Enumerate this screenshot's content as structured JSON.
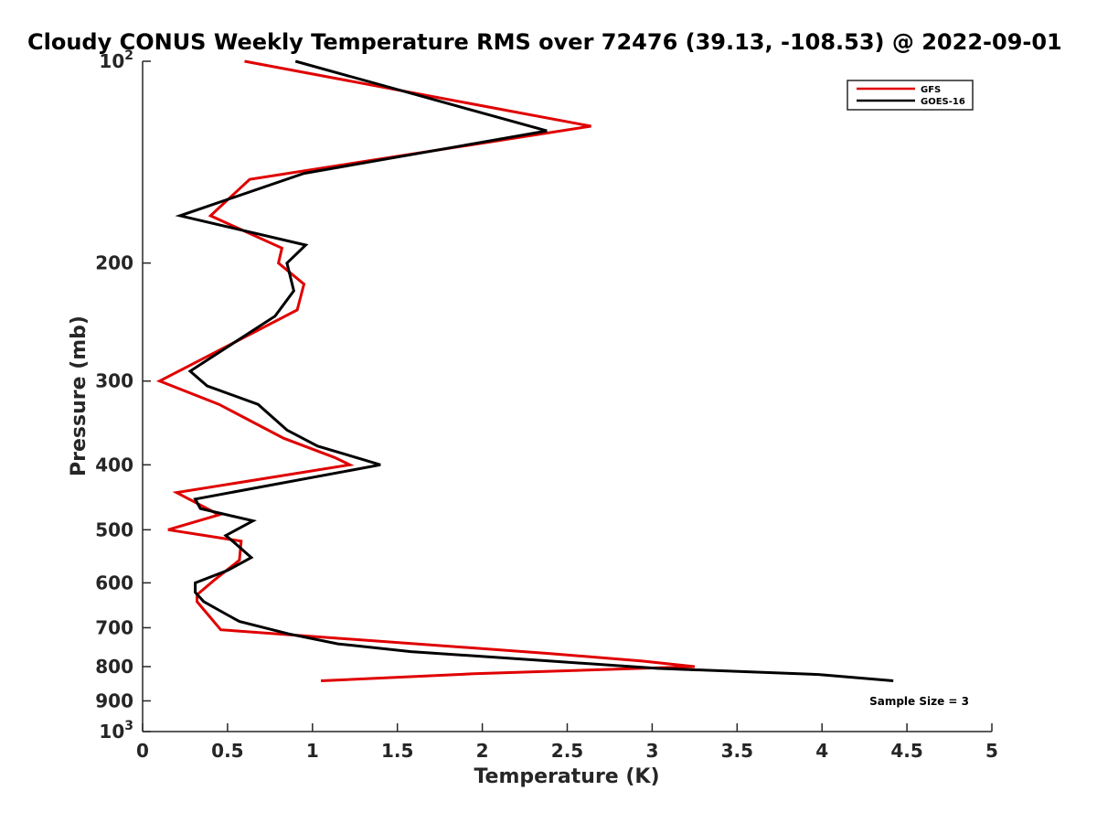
{
  "chart_data": {
    "type": "line",
    "title": "Cloudy CONUS Weekly Temperature RMS over 72476 (39.13, -108.53) @ 2022-09-01",
    "xlabel": "Temperature (K)",
    "ylabel": "Pressure (mb)",
    "xlim": [
      0,
      5
    ],
    "ylim": [
      100,
      1000
    ],
    "yscale": "log",
    "yreversed": true,
    "x_ticks": [
      "0",
      "0.5",
      "1",
      "1.5",
      "2",
      "2.5",
      "3",
      "3.5",
      "4",
      "4.5",
      "5"
    ],
    "y_ticks": [
      {
        "value": 100,
        "base": "10",
        "exp": "2"
      },
      {
        "value": 200,
        "label": "200"
      },
      {
        "value": 300,
        "label": "300"
      },
      {
        "value": 400,
        "label": "400"
      },
      {
        "value": 500,
        "label": "500"
      },
      {
        "value": 600,
        "label": "600"
      },
      {
        "value": 700,
        "label": "700"
      },
      {
        "value": 800,
        "label": "800"
      },
      {
        "value": 900,
        "label": "900"
      },
      {
        "value": 1000,
        "base": "10",
        "exp": "3"
      }
    ],
    "legend_position": "top-right",
    "annotation": "Sample Size = 3",
    "series": [
      {
        "name": "GFS",
        "color": "#e00000",
        "points": [
          [
            0.6,
            100
          ],
          [
            2.64,
            125
          ],
          [
            0.63,
            150
          ],
          [
            0.4,
            170
          ],
          [
            0.82,
            190
          ],
          [
            0.8,
            200
          ],
          [
            0.95,
            215
          ],
          [
            0.91,
            235
          ],
          [
            0.1,
            300
          ],
          [
            0.45,
            325
          ],
          [
            0.83,
            365
          ],
          [
            1.13,
            390
          ],
          [
            1.22,
            400
          ],
          [
            0.2,
            440
          ],
          [
            0.45,
            475
          ],
          [
            0.15,
            500
          ],
          [
            0.58,
            520
          ],
          [
            0.57,
            555
          ],
          [
            0.42,
            595
          ],
          [
            0.32,
            625
          ],
          [
            0.32,
            640
          ],
          [
            0.46,
            705
          ],
          [
            2.4,
            765
          ],
          [
            2.94,
            785
          ],
          [
            3.25,
            800
          ],
          [
            1.95,
            820
          ],
          [
            1.05,
            840
          ]
        ]
      },
      {
        "name": "GOES-16",
        "color": "#000000",
        "points": [
          [
            0.9,
            100
          ],
          [
            2.38,
            127
          ],
          [
            0.95,
            147
          ],
          [
            0.22,
            170
          ],
          [
            0.96,
            188
          ],
          [
            0.85,
            200
          ],
          [
            0.89,
            220
          ],
          [
            0.78,
            240
          ],
          [
            0.28,
            290
          ],
          [
            0.38,
            305
          ],
          [
            0.68,
            325
          ],
          [
            0.85,
            355
          ],
          [
            1.03,
            375
          ],
          [
            1.3,
            393
          ],
          [
            1.4,
            400
          ],
          [
            0.31,
            450
          ],
          [
            0.34,
            465
          ],
          [
            0.65,
            485
          ],
          [
            0.49,
            510
          ],
          [
            0.53,
            520
          ],
          [
            0.64,
            550
          ],
          [
            0.5,
            575
          ],
          [
            0.31,
            600
          ],
          [
            0.31,
            620
          ],
          [
            0.36,
            640
          ],
          [
            0.5,
            670
          ],
          [
            0.57,
            685
          ],
          [
            0.86,
            715
          ],
          [
            1.15,
            740
          ],
          [
            1.58,
            760
          ],
          [
            2.4,
            785
          ],
          [
            3.03,
            805
          ],
          [
            3.98,
            822
          ],
          [
            4.42,
            840
          ]
        ]
      }
    ]
  }
}
